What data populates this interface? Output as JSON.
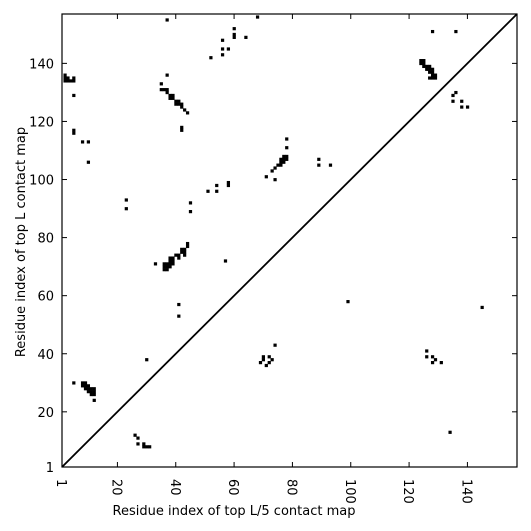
{
  "chart_data": {
    "type": "scatter",
    "title": "",
    "xlabel": "Residue index of top L/5 contact map",
    "ylabel": "Residue index of top L contact map",
    "xlim": [
      1,
      157
    ],
    "ylim": [
      1,
      157
    ],
    "x_ticks": [
      1,
      20,
      40,
      60,
      80,
      100,
      120,
      140
    ],
    "y_ticks": [
      1,
      20,
      40,
      60,
      80,
      100,
      120,
      140
    ],
    "diagonal": true,
    "marker": "filled-square",
    "color": "#000000",
    "series": [
      {
        "points": [
          [
            8,
            30
          ],
          [
            9,
            30
          ],
          [
            8,
            29
          ],
          [
            9,
            29
          ],
          [
            10,
            29
          ],
          [
            9,
            28
          ],
          [
            10,
            28
          ],
          [
            11,
            28
          ],
          [
            12,
            28
          ],
          [
            10,
            27
          ],
          [
            11,
            27
          ],
          [
            12,
            27
          ],
          [
            11,
            26
          ],
          [
            12,
            26
          ],
          [
            12,
            24
          ],
          [
            5,
            30
          ],
          [
            26,
            12
          ],
          [
            27,
            11
          ],
          [
            27,
            9
          ],
          [
            29,
            9
          ],
          [
            29,
            8
          ],
          [
            30,
            8
          ],
          [
            31,
            8
          ],
          [
            30,
            38
          ],
          [
            23,
            93
          ],
          [
            23,
            90
          ],
          [
            10,
            106
          ],
          [
            8,
            113
          ],
          [
            10,
            113
          ],
          [
            5,
            117
          ],
          [
            5,
            116
          ],
          [
            5,
            129
          ],
          [
            2,
            136
          ],
          [
            2,
            135
          ],
          [
            3,
            135
          ],
          [
            2,
            134
          ],
          [
            3,
            134
          ],
          [
            4,
            134
          ],
          [
            5,
            135
          ],
          [
            5,
            134
          ],
          [
            35,
            133
          ],
          [
            37,
            136
          ],
          [
            37,
            155
          ],
          [
            35,
            131
          ],
          [
            36,
            131
          ],
          [
            37,
            131
          ],
          [
            37,
            130
          ],
          [
            38,
            129
          ],
          [
            39,
            129
          ],
          [
            38,
            128
          ],
          [
            39,
            128
          ],
          [
            40,
            127
          ],
          [
            40,
            126
          ],
          [
            41,
            127
          ],
          [
            41,
            126
          ],
          [
            42,
            126
          ],
          [
            42,
            125
          ],
          [
            43,
            124
          ],
          [
            42,
            118
          ],
          [
            42,
            117
          ],
          [
            44,
            123
          ],
          [
            33,
            71
          ],
          [
            36,
            70
          ],
          [
            37,
            70
          ],
          [
            38,
            70
          ],
          [
            36,
            69
          ],
          [
            37,
            69
          ],
          [
            36,
            71
          ],
          [
            37,
            71
          ],
          [
            38,
            71
          ],
          [
            39,
            71
          ],
          [
            38,
            72
          ],
          [
            39,
            72
          ],
          [
            38,
            73
          ],
          [
            39,
            73
          ],
          [
            40,
            74
          ],
          [
            41,
            74
          ],
          [
            41,
            73
          ],
          [
            42,
            75
          ],
          [
            43,
            75
          ],
          [
            42,
            76
          ],
          [
            43,
            76
          ],
          [
            44,
            77
          ],
          [
            44,
            78
          ],
          [
            41,
            57
          ],
          [
            41,
            53
          ],
          [
            43,
            74
          ],
          [
            45,
            89
          ],
          [
            45,
            92
          ],
          [
            51,
            96
          ],
          [
            54,
            96
          ],
          [
            54,
            98
          ],
          [
            57,
            72
          ],
          [
            58,
            98
          ],
          [
            58,
            99
          ],
          [
            52,
            142
          ],
          [
            56,
            143
          ],
          [
            56,
            145
          ],
          [
            56,
            148
          ],
          [
            58,
            145
          ],
          [
            60,
            149
          ],
          [
            60,
            150
          ],
          [
            60,
            152
          ],
          [
            64,
            149
          ],
          [
            68,
            156
          ],
          [
            69,
            37
          ],
          [
            70,
            38
          ],
          [
            70,
            39
          ],
          [
            71,
            36
          ],
          [
            72,
            39
          ],
          [
            72,
            37
          ],
          [
            73,
            38
          ],
          [
            74,
            43
          ],
          [
            71,
            101
          ],
          [
            73,
            103
          ],
          [
            74,
            100
          ],
          [
            74,
            104
          ],
          [
            75,
            105
          ],
          [
            76,
            105
          ],
          [
            76,
            106
          ],
          [
            76,
            107
          ],
          [
            77,
            107
          ],
          [
            77,
            108
          ],
          [
            78,
            108
          ],
          [
            78,
            107
          ],
          [
            77,
            106
          ],
          [
            78,
            111
          ],
          [
            78,
            114
          ],
          [
            89,
            105
          ],
          [
            89,
            107
          ],
          [
            93,
            105
          ],
          [
            99,
            58
          ],
          [
            124,
            141
          ],
          [
            124,
            140
          ],
          [
            125,
            141
          ],
          [
            125,
            140
          ],
          [
            125,
            139
          ],
          [
            126,
            139
          ],
          [
            126,
            138
          ],
          [
            127,
            139
          ],
          [
            127,
            138
          ],
          [
            127,
            137
          ],
          [
            128,
            138
          ],
          [
            128,
            137
          ],
          [
            128,
            136
          ],
          [
            128,
            135
          ],
          [
            127,
            135
          ],
          [
            129,
            136
          ],
          [
            129,
            135
          ],
          [
            128,
            151
          ],
          [
            135,
            127
          ],
          [
            135,
            129
          ],
          [
            136,
            130
          ],
          [
            136,
            151
          ],
          [
            138,
            125
          ],
          [
            138,
            127
          ],
          [
            140,
            125
          ],
          [
            126,
            41
          ],
          [
            126,
            39
          ],
          [
            128,
            39
          ],
          [
            128,
            37
          ],
          [
            129,
            38
          ],
          [
            131,
            37
          ],
          [
            134,
            13
          ],
          [
            145,
            56
          ]
        ]
      }
    ]
  }
}
